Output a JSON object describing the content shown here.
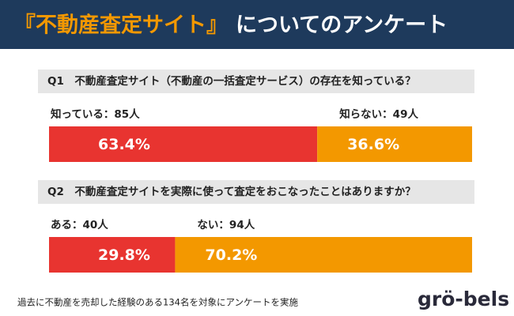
{
  "header": {
    "title_highlight": "『不動産査定サイト』",
    "title_rest": "についてのアンケート"
  },
  "chart_data": [
    {
      "type": "stacked-bar",
      "question": "Q1　不動産査定サイト（不動産の一括査定サービス）の存在を知っている？",
      "series": [
        {
          "name": "知っている：85人",
          "color": "#e83430",
          "values": [
            63.4
          ],
          "value_labels": [
            "63.4%"
          ]
        },
        {
          "name": "知らない：49人",
          "color": "#f39800",
          "values": [
            36.6
          ],
          "value_labels": [
            "36.6%"
          ]
        }
      ],
      "xlim": [
        0,
        100
      ]
    },
    {
      "type": "stacked-bar",
      "question": "Q2　不動産査定サイトを実際に使って査定をおこなったことはありますか？",
      "series": [
        {
          "name": "ある：40人",
          "color": "#e83430",
          "values": [
            29.8
          ],
          "value_labels": [
            "29.8%"
          ]
        },
        {
          "name": "ない：94人",
          "color": "#f39800",
          "values": [
            70.2
          ],
          "value_labels": [
            "70.2%"
          ]
        }
      ],
      "xlim": [
        0,
        100
      ]
    }
  ],
  "footer": {
    "note": "過去に不動産を売却した経験のある134名を対象にアンケートを実施",
    "logo": "grö-bels"
  }
}
